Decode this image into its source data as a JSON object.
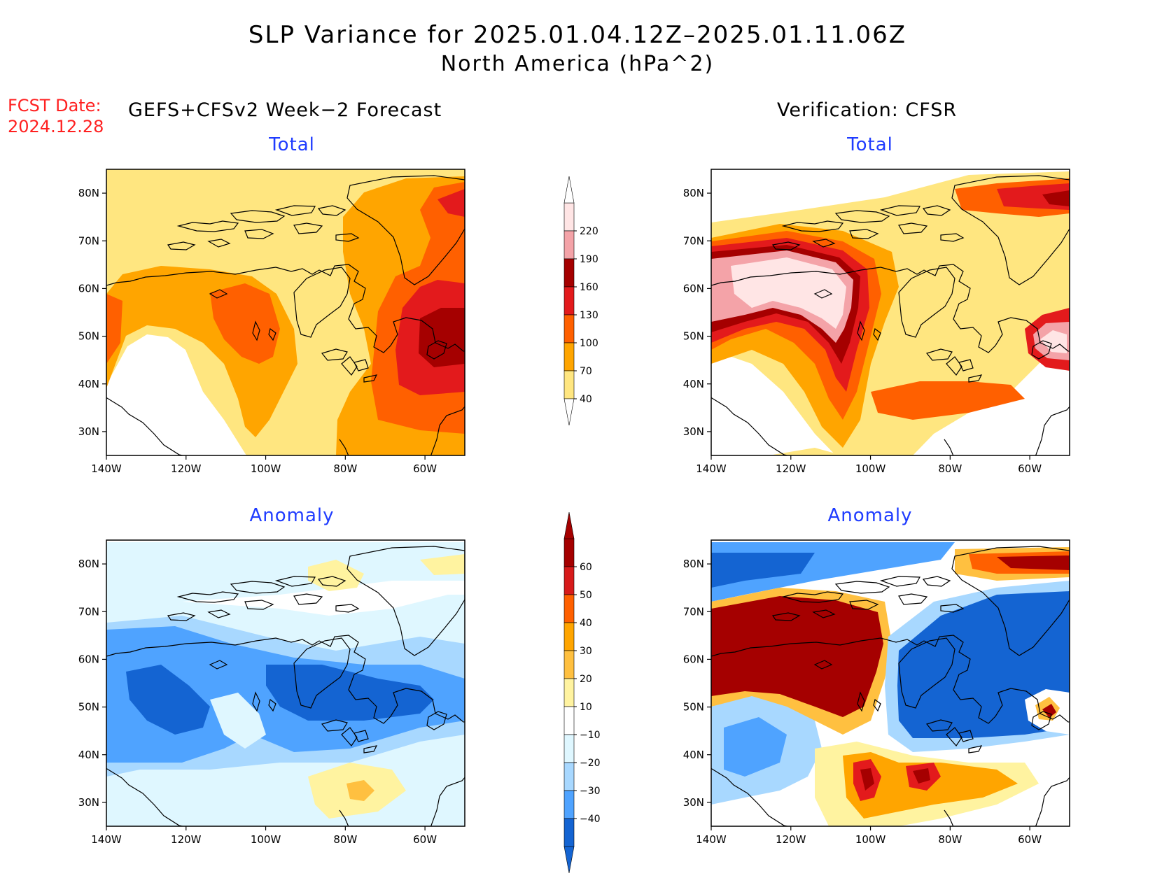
{
  "title_line1": "SLP Variance for 2025.01.04.12Z–2025.01.11.06Z",
  "title_line2": "North America (hPa^2)",
  "fcst_label": "FCST Date:",
  "fcst_date": "2024.12.28",
  "left_header": "GEFS+CFSv2 Week−2 Forecast",
  "right_header": "Verification: CFSR",
  "panels": {
    "fc_total_title": "Total",
    "ver_total_title": "Total",
    "fc_anom_title": "Anomaly",
    "ver_anom_title": "Anomaly"
  },
  "axes": {
    "lat_labels": [
      "80N",
      "70N",
      "60N",
      "50N",
      "40N",
      "30N"
    ],
    "lon_labels": [
      "140W",
      "120W",
      "100W",
      "80W",
      "60W"
    ],
    "lon_range": [
      -140,
      -50
    ],
    "lat_range": [
      25,
      85
    ]
  },
  "colorbar_total": {
    "levels": [
      "220",
      "190",
      "160",
      "130",
      "100",
      "70",
      "40"
    ],
    "colors": [
      "#ffe5e5",
      "#f4a3a8",
      "#a50000",
      "#e31a1c",
      "#ff6000",
      "#ffa500",
      "#ffe680"
    ]
  },
  "colorbar_anomaly": {
    "levels": [
      "60",
      "50",
      "40",
      "30",
      "20",
      "10",
      "−10",
      "−20",
      "−30",
      "−40"
    ],
    "colors": [
      "#a50000",
      "#d71a1a",
      "#ff6000",
      "#ffa500",
      "#ffc040",
      "#fff3a0",
      "#ffffff",
      "#dff7ff",
      "#a8d8ff",
      "#4fa3ff",
      "#1464d2"
    ]
  }
}
